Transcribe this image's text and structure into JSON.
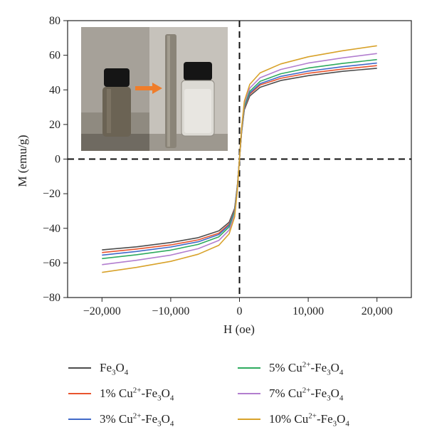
{
  "chart_data": {
    "type": "line",
    "title": "",
    "xlabel": "H (oe)",
    "ylabel": "M (emu/g)",
    "xlim": [
      -25000,
      25000
    ],
    "ylim": [
      -80,
      80
    ],
    "xticks": [
      -20000,
      -10000,
      0,
      10000,
      20000
    ],
    "xtick_labels": [
      "−20,000",
      "−10,000",
      "0",
      "10,000",
      "20,000"
    ],
    "yticks": [
      -80,
      -60,
      -40,
      -20,
      0,
      20,
      40,
      60,
      80
    ],
    "ytick_labels": [
      "−80",
      "−60",
      "−40",
      "−20",
      "0",
      "20",
      "40",
      "60",
      "80"
    ],
    "grid": false,
    "legend_position": "below",
    "x": [
      -20000,
      -15000,
      -10000,
      -6000,
      -3000,
      -1500,
      -700,
      -300,
      0,
      300,
      700,
      1500,
      3000,
      6000,
      10000,
      15000,
      20000
    ],
    "series": [
      {
        "name": "Fe3O4",
        "color": "#4d4d4d",
        "values": [
          -52.5,
          -50.7,
          -48.2,
          -45.4,
          -41.5,
          -36.5,
          -28.5,
          -15.0,
          0,
          15.0,
          28.5,
          36.5,
          41.5,
          45.4,
          48.2,
          50.7,
          52.5
        ]
      },
      {
        "name": "1% Cu2+-Fe3O4",
        "color": "#e8542e",
        "values": [
          -54.0,
          -52.0,
          -49.6,
          -46.7,
          -42.8,
          -37.5,
          -29.3,
          -15.5,
          0,
          15.5,
          29.3,
          37.5,
          42.8,
          46.7,
          49.6,
          52.0,
          54.0
        ]
      },
      {
        "name": "3% Cu2+-Fe3O4",
        "color": "#4169c8",
        "values": [
          -55.5,
          -53.4,
          -50.8,
          -47.8,
          -43.6,
          -38.2,
          -29.8,
          -15.8,
          0,
          15.8,
          29.8,
          38.2,
          43.6,
          47.8,
          50.8,
          53.4,
          55.5
        ]
      },
      {
        "name": "5% Cu2+-Fe3O4",
        "color": "#2eab5e",
        "values": [
          -57.5,
          -55.3,
          -52.6,
          -49.3,
          -44.9,
          -39.2,
          -30.5,
          -16.2,
          0,
          16.2,
          30.5,
          39.2,
          44.9,
          49.3,
          52.6,
          55.3,
          57.5
        ]
      },
      {
        "name": "7% Cu2+-Fe3O4",
        "color": "#b27ecf",
        "values": [
          -61.0,
          -58.5,
          -55.5,
          -51.8,
          -47.0,
          -41.0,
          -31.8,
          -16.8,
          0,
          16.8,
          31.8,
          41.0,
          47.0,
          51.8,
          55.5,
          58.5,
          61.0
        ]
      },
      {
        "name": "10% Cu2+-Fe3O4",
        "color": "#d8a22a",
        "values": [
          -65.5,
          -62.6,
          -59.1,
          -55.0,
          -49.8,
          -43.2,
          -33.4,
          -17.6,
          0,
          17.6,
          33.4,
          43.2,
          49.8,
          55.0,
          59.1,
          62.6,
          65.5
        ]
      }
    ]
  },
  "legend": [
    {
      "pre": "Fe",
      "sub1": "3",
      "mid": "O",
      "sup": "",
      "mid2": "",
      "sub2": "4",
      "color": "#4d4d4d"
    },
    {
      "pre": "1% Cu",
      "sub1": "",
      "mid": "",
      "sup": "2+",
      "mid2": "-Fe",
      "sub2": "3",
      "post": "O",
      "sub3": "4",
      "color": "#e8542e"
    },
    {
      "pre": "3% Cu",
      "sub1": "",
      "mid": "",
      "sup": "2+",
      "mid2": "-Fe",
      "sub2": "3",
      "post": "O",
      "sub3": "4",
      "color": "#4169c8"
    },
    {
      "pre": "5% Cu",
      "sub1": "",
      "mid": "",
      "sup": "2+",
      "mid2": "-Fe",
      "sub2": "3",
      "post": "O",
      "sub3": "4",
      "color": "#2eab5e"
    },
    {
      "pre": "7% Cu",
      "sub1": "",
      "mid": "",
      "sup": "2+",
      "mid2": "-Fe",
      "sub2": "3",
      "post": "O",
      "sub3": "4",
      "color": "#b27ecf"
    },
    {
      "pre": "10% Cu",
      "sub1": "",
      "mid": "",
      "sup": "2+",
      "mid2": "-Fe",
      "sub2": "3",
      "post": "O",
      "sub3": "4",
      "color": "#d8a22a"
    }
  ],
  "inset": {
    "photo_left": "vial with dispersed dark particle suspension",
    "photo_right": "vial with clear liquid after magnetic separation, magnet bar beside it",
    "arrow_color": "#ef7d2b"
  }
}
